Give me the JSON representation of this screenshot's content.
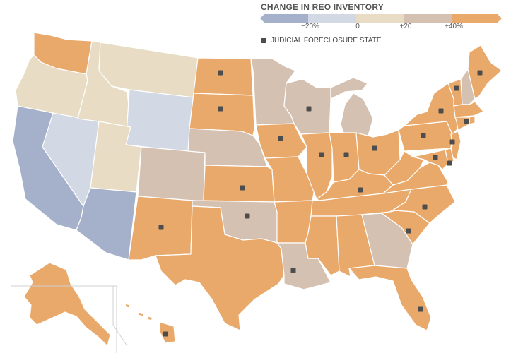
{
  "legend": {
    "title": "CHANGE IN REO INVENTORY",
    "ticks": [
      "−20%",
      "0",
      "+20",
      "+40%"
    ],
    "segment_colors": [
      "#a5b0cb",
      "#d3d9e4",
      "#e8dcc4",
      "#d5c1b1",
      "#e9a96a"
    ],
    "judicial_label": "JUDICIAL FORECLOSURE STATE",
    "judicial_marker_color": "#4d4d4d"
  },
  "bins": {
    "lt_minus20": "#a5b0cb",
    "minus20_to_0": "#d3d9e4",
    "0_to_20": "#e8dcc4",
    "20_to_40": "#d5c1b1",
    "gt_40": "#e9a96a"
  },
  "states": [
    {
      "id": "WA",
      "bin": "gt_40",
      "judicial": false
    },
    {
      "id": "OR",
      "bin": "0_to_20",
      "judicial": false
    },
    {
      "id": "CA",
      "bin": "lt_minus20",
      "judicial": false
    },
    {
      "id": "NV",
      "bin": "minus20_to_0",
      "judicial": false
    },
    {
      "id": "ID",
      "bin": "0_to_20",
      "judicial": false
    },
    {
      "id": "MT",
      "bin": "0_to_20",
      "judicial": false
    },
    {
      "id": "WY",
      "bin": "minus20_to_0",
      "judicial": false
    },
    {
      "id": "UT",
      "bin": "0_to_20",
      "judicial": false
    },
    {
      "id": "AZ",
      "bin": "lt_minus20",
      "judicial": false
    },
    {
      "id": "CO",
      "bin": "20_to_40",
      "judicial": false
    },
    {
      "id": "NM",
      "bin": "gt_40",
      "judicial": true
    },
    {
      "id": "ND",
      "bin": "gt_40",
      "judicial": true
    },
    {
      "id": "SD",
      "bin": "gt_40",
      "judicial": true
    },
    {
      "id": "NE",
      "bin": "20_to_40",
      "judicial": false
    },
    {
      "id": "KS",
      "bin": "gt_40",
      "judicial": true
    },
    {
      "id": "OK",
      "bin": "20_to_40",
      "judicial": true
    },
    {
      "id": "TX",
      "bin": "gt_40",
      "judicial": false
    },
    {
      "id": "MN",
      "bin": "20_to_40",
      "judicial": false
    },
    {
      "id": "IA",
      "bin": "gt_40",
      "judicial": true
    },
    {
      "id": "MO",
      "bin": "gt_40",
      "judicial": false
    },
    {
      "id": "AR",
      "bin": "gt_40",
      "judicial": false
    },
    {
      "id": "LA",
      "bin": "20_to_40",
      "judicial": true
    },
    {
      "id": "WI",
      "bin": "20_to_40",
      "judicial": true
    },
    {
      "id": "MI",
      "bin": "20_to_40",
      "judicial": false
    },
    {
      "id": "IL",
      "bin": "gt_40",
      "judicial": true
    },
    {
      "id": "IN",
      "bin": "gt_40",
      "judicial": true
    },
    {
      "id": "OH",
      "bin": "gt_40",
      "judicial": true
    },
    {
      "id": "KY",
      "bin": "gt_40",
      "judicial": true
    },
    {
      "id": "TN",
      "bin": "gt_40",
      "judicial": false
    },
    {
      "id": "MS",
      "bin": "gt_40",
      "judicial": false
    },
    {
      "id": "AL",
      "bin": "gt_40",
      "judicial": false
    },
    {
      "id": "GA",
      "bin": "20_to_40",
      "judicial": false
    },
    {
      "id": "FL",
      "bin": "gt_40",
      "judicial": true
    },
    {
      "id": "SC",
      "bin": "gt_40",
      "judicial": true
    },
    {
      "id": "NC",
      "bin": "gt_40",
      "judicial": true
    },
    {
      "id": "VA",
      "bin": "gt_40",
      "judicial": false
    },
    {
      "id": "WV",
      "bin": "gt_40",
      "judicial": false
    },
    {
      "id": "PA",
      "bin": "gt_40",
      "judicial": true
    },
    {
      "id": "NY",
      "bin": "gt_40",
      "judicial": true
    },
    {
      "id": "VT",
      "bin": "gt_40",
      "judicial": true
    },
    {
      "id": "NH",
      "bin": "20_to_40",
      "judicial": false
    },
    {
      "id": "ME",
      "bin": "gt_40",
      "judicial": true
    },
    {
      "id": "MA",
      "bin": "gt_40",
      "judicial": false
    },
    {
      "id": "CT",
      "bin": "gt_40",
      "judicial": true
    },
    {
      "id": "RI",
      "bin": "gt_40",
      "judicial": false
    },
    {
      "id": "NJ",
      "bin": "gt_40",
      "judicial": true
    },
    {
      "id": "DE",
      "bin": "gt_40",
      "judicial": true
    },
    {
      "id": "MD",
      "bin": "gt_40",
      "judicial": true
    },
    {
      "id": "AK",
      "bin": "gt_40",
      "judicial": false
    },
    {
      "id": "HI",
      "bin": "gt_40",
      "judicial": true
    }
  ]
}
